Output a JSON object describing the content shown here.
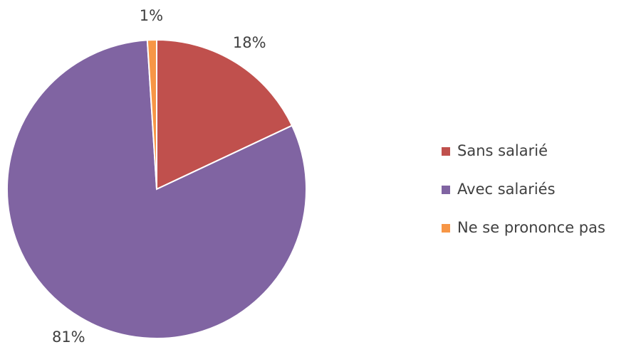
{
  "chart_data": {
    "type": "pie",
    "categories": [
      "Sans salarié",
      "Avec salariés",
      "Ne se prononce pas"
    ],
    "values": [
      18,
      81,
      1
    ],
    "value_labels": [
      "18%",
      "81%",
      "1%"
    ],
    "colors": [
      "#c0504d",
      "#8064a2",
      "#f79646"
    ],
    "legend": "right"
  }
}
